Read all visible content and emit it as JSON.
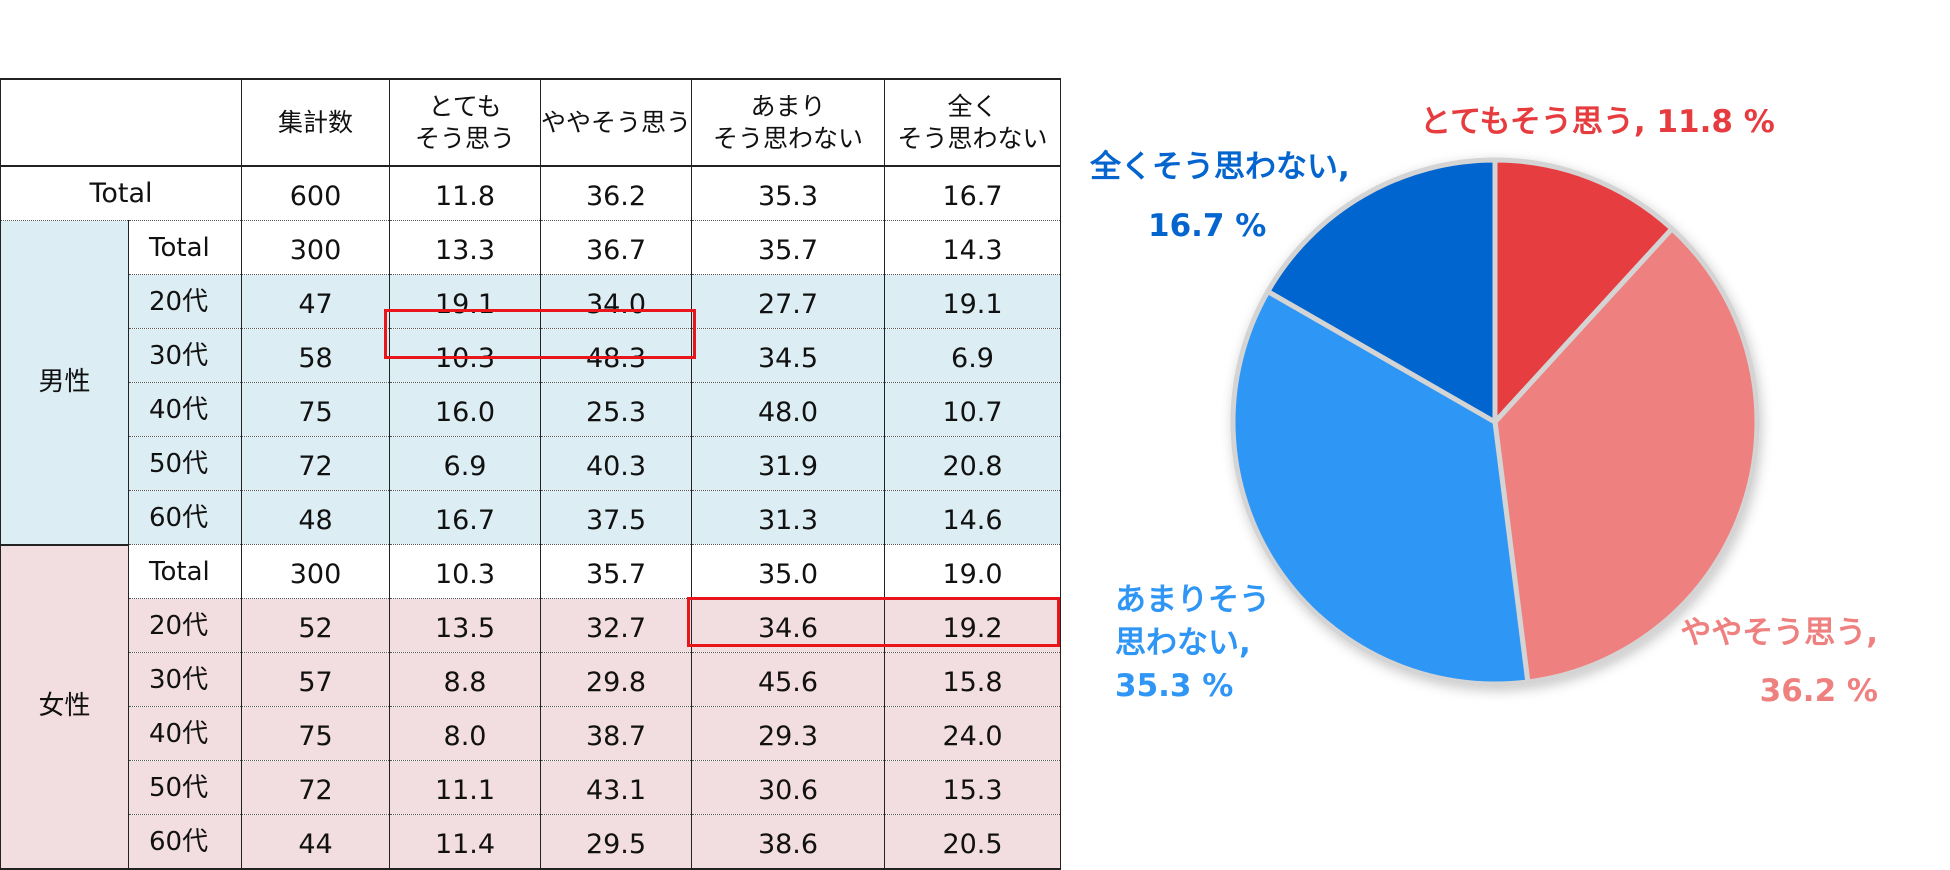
{
  "table": {
    "headers": {
      "count": [
        "集計数"
      ],
      "c1": [
        "とても",
        "そう思う"
      ],
      "c2": [
        "ややそう思う"
      ],
      "c3": [
        "あまり",
        "そう思わない"
      ],
      "c4": [
        "全く",
        "そう思わない"
      ]
    },
    "total_row": {
      "label": "Total",
      "values": [
        "600",
        "11.8",
        "36.2",
        "35.3",
        "16.7"
      ]
    },
    "groups": [
      {
        "label": "男性",
        "rows": [
          {
            "label": "Total",
            "values": [
              "300",
              "13.3",
              "36.7",
              "35.7",
              "14.3"
            ]
          },
          {
            "label": "20代",
            "values": [
              "47",
              "19.1",
              "34.0",
              "27.7",
              "19.1"
            ]
          },
          {
            "label": "30代",
            "values": [
              "58",
              "10.3",
              "48.3",
              "34.5",
              "6.9"
            ]
          },
          {
            "label": "40代",
            "values": [
              "75",
              "16.0",
              "25.3",
              "48.0",
              "10.7"
            ]
          },
          {
            "label": "50代",
            "values": [
              "72",
              "6.9",
              "40.3",
              "31.9",
              "20.8"
            ]
          },
          {
            "label": "60代",
            "values": [
              "48",
              "16.7",
              "37.5",
              "31.3",
              "14.6"
            ]
          }
        ]
      },
      {
        "label": "女性",
        "rows": [
          {
            "label": "Total",
            "values": [
              "300",
              "10.3",
              "35.7",
              "35.0",
              "19.0"
            ]
          },
          {
            "label": "20代",
            "values": [
              "52",
              "13.5",
              "32.7",
              "34.6",
              "19.2"
            ]
          },
          {
            "label": "30代",
            "values": [
              "57",
              "8.8",
              "29.8",
              "45.6",
              "15.8"
            ]
          },
          {
            "label": "40代",
            "values": [
              "75",
              "8.0",
              "38.7",
              "29.3",
              "24.0"
            ]
          },
          {
            "label": "50代",
            "values": [
              "72",
              "11.1",
              "43.1",
              "30.6",
              "15.3"
            ]
          },
          {
            "label": "60代",
            "values": [
              "44",
              "11.4",
              "29.5",
              "38.6",
              "20.5"
            ]
          }
        ]
      }
    ],
    "colors": {
      "male_bg": "#dcedf3",
      "female_bg": "#f2dde0",
      "highlight": "#e8161b"
    }
  },
  "chart_data": {
    "type": "pie",
    "start_angle_deg": 0,
    "direction": "clockwise",
    "slices": [
      {
        "label_lines": [
          "とてもそう思う, 11.8 %"
        ],
        "value": 11.8,
        "color": "#e63c3f"
      },
      {
        "label_lines": [
          "ややそう思う,",
          "36.2 %"
        ],
        "value": 36.2,
        "color": "#ef8080"
      },
      {
        "label_lines": [
          "あまりそう",
          "思わない,",
          "35.3 %"
        ],
        "value": 35.3,
        "color": "#2f96f5"
      },
      {
        "label_lines": [
          "全くそう思わない,",
          "16.7 %"
        ],
        "value": 16.7,
        "color": "#0565cf"
      }
    ]
  }
}
